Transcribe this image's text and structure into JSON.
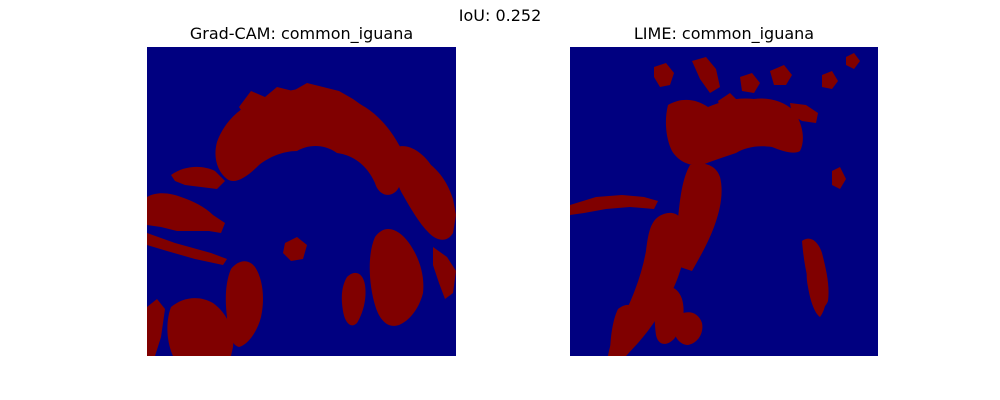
{
  "suptitle": "IoU: 0.252",
  "colors": {
    "background": "#000080",
    "foreground": "#800000"
  },
  "chart_data": [
    {
      "type": "heatmap",
      "title": "Grad-CAM: common_iguana",
      "xlabel": "",
      "ylabel": "",
      "axis": "off",
      "colormap": "jet (binary mask)",
      "values": [
        0,
        1
      ]
    },
    {
      "type": "heatmap",
      "title": "LIME: common_iguana",
      "xlabel": "",
      "ylabel": "",
      "axis": "off",
      "colormap": "jet (binary mask)",
      "values": [
        0,
        1
      ]
    }
  ]
}
